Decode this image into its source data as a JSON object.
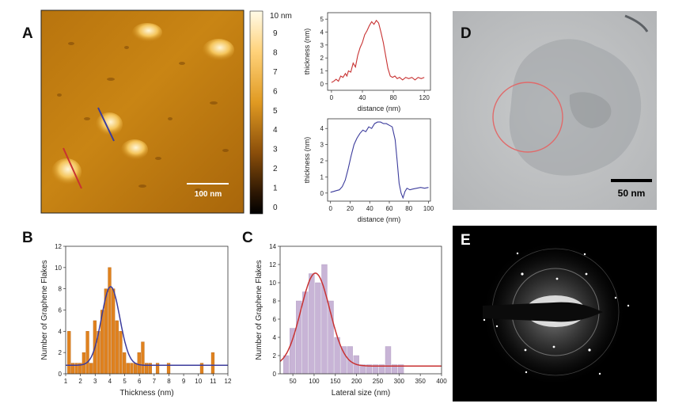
{
  "panels": {
    "A": {
      "letter": "A",
      "scalebar_label": "100 nm",
      "colorbar": {
        "unit_label": "10 nm",
        "ticks": [
          "9",
          "8",
          "7",
          "6",
          "5",
          "4",
          "3",
          "2",
          "1",
          "0"
        ]
      }
    },
    "B": {
      "letter": "B"
    },
    "C": {
      "letter": "C"
    },
    "D": {
      "letter": "D",
      "scalebar_label": "50 nm"
    },
    "E": {
      "letter": "E"
    }
  },
  "colors": {
    "red": "#c83232",
    "blue": "#3c3c9c",
    "orange_bar": "#e0821e",
    "lilac_bar": "#c8b4d6",
    "afm_mid": "#c78316"
  },
  "chart_data": [
    {
      "id": "profile-red",
      "type": "line",
      "xlabel": "distance (nm)",
      "ylabel": "thickness (nm)",
      "xlim": [
        -5,
        128
      ],
      "ylim": [
        -0.5,
        5.5
      ],
      "xticks": [
        "0",
        "40",
        "80",
        "120"
      ],
      "yticks": [
        "0",
        "1",
        "2",
        "3",
        "4",
        "5"
      ],
      "series": [
        {
          "color": "#c83232",
          "x": [
            0,
            3,
            6,
            9,
            12,
            15,
            18,
            20,
            22,
            25,
            28,
            31,
            34,
            37,
            40,
            43,
            46,
            49,
            52,
            55,
            58,
            61,
            64,
            67,
            70,
            73,
            76,
            79,
            82,
            85,
            88,
            92,
            96,
            100,
            104,
            108,
            112,
            116,
            120
          ],
          "y": [
            0.1,
            0.2,
            0.35,
            0.2,
            0.6,
            0.5,
            0.8,
            0.6,
            1.0,
            0.9,
            1.6,
            1.3,
            2.2,
            2.8,
            3.2,
            3.8,
            4.1,
            4.5,
            4.8,
            4.6,
            4.9,
            4.7,
            4.0,
            3.2,
            2.2,
            1.2,
            0.6,
            0.5,
            0.6,
            0.4,
            0.5,
            0.3,
            0.5,
            0.4,
            0.5,
            0.3,
            0.5,
            0.4,
            0.5
          ]
        }
      ]
    },
    {
      "id": "profile-blue",
      "type": "line",
      "xlabel": "distance (nm)",
      "ylabel": "thickness (nm)",
      "xlim": [
        -3,
        102
      ],
      "ylim": [
        -0.5,
        4.6
      ],
      "xticks": [
        "0",
        "20",
        "40",
        "60",
        "80",
        "100"
      ],
      "yticks": [
        "0",
        "1",
        "2",
        "3",
        "4"
      ],
      "series": [
        {
          "color": "#3c3c9c",
          "x": [
            0,
            3,
            6,
            9,
            12,
            15,
            18,
            21,
            24,
            27,
            30,
            33,
            36,
            39,
            42,
            45,
            48,
            51,
            54,
            57,
            60,
            63,
            66,
            68,
            70,
            72,
            74,
            76,
            78,
            81,
            84,
            88,
            92,
            96,
            100
          ],
          "y": [
            0.05,
            0.1,
            0.15,
            0.2,
            0.4,
            0.8,
            1.5,
            2.3,
            3.0,
            3.4,
            3.7,
            3.9,
            3.8,
            4.1,
            4.0,
            4.3,
            4.4,
            4.4,
            4.3,
            4.3,
            4.2,
            4.1,
            3.3,
            2.0,
            0.6,
            0.0,
            -0.3,
            0.1,
            0.3,
            0.2,
            0.25,
            0.3,
            0.35,
            0.3,
            0.35
          ]
        }
      ]
    },
    {
      "id": "hist-thickness",
      "type": "bar",
      "xlabel": "Thickness (nm)",
      "ylabel": "Number of Graphene Flakes",
      "xlim": [
        1,
        12
      ],
      "ylim": [
        0,
        12
      ],
      "xticks": [
        "1",
        "2",
        "3",
        "4",
        "5",
        "6",
        "7",
        "8",
        "9",
        "10",
        "11",
        "12"
      ],
      "yticks": [
        "0",
        "2",
        "4",
        "6",
        "8",
        "10",
        "12"
      ],
      "bar_width": 0.25,
      "x": [
        1.25,
        1.5,
        1.75,
        2.0,
        2.25,
        2.5,
        2.75,
        3.0,
        3.25,
        3.5,
        3.75,
        4.0,
        4.25,
        4.5,
        4.75,
        5.0,
        5.25,
        5.5,
        5.75,
        6.0,
        6.25,
        6.5,
        6.75,
        7.0,
        7.25,
        7.5,
        7.75,
        8.0,
        8.25,
        8.5,
        8.75,
        9.0,
        9.25,
        9.5,
        9.75,
        10.0,
        10.25,
        10.5,
        10.75,
        11.0,
        11.25
      ],
      "values": [
        4,
        1,
        1,
        1,
        2,
        4,
        1,
        5,
        4,
        6,
        8,
        10,
        8,
        5,
        4,
        2,
        1,
        1,
        1,
        2,
        3,
        1,
        1,
        0,
        1,
        0,
        0,
        1,
        0,
        0,
        0,
        0,
        0,
        0,
        0,
        0,
        1,
        0,
        0,
        2,
        0
      ],
      "fit": {
        "color": "#3c3c9c",
        "amplitude": 7.4,
        "center": 4.05,
        "sigma": 0.62,
        "offset": 0.8
      }
    },
    {
      "id": "hist-lateral",
      "type": "bar",
      "xlabel": "Lateral size (nm)",
      "ylabel": "Number of Graphene Flakes",
      "xlim": [
        20,
        400
      ],
      "ylim": [
        0,
        14
      ],
      "xticks": [
        "50",
        "100",
        "150",
        "200",
        "250",
        "300",
        "350",
        "400"
      ],
      "yticks": [
        "0",
        "2",
        "4",
        "6",
        "8",
        "10",
        "12",
        "14"
      ],
      "bar_width": 14.5,
      "x": [
        35,
        50,
        65,
        80,
        95,
        110,
        125,
        140,
        155,
        170,
        185,
        200,
        215,
        230,
        245,
        260,
        275,
        290,
        305,
        320,
        335,
        350
      ],
      "values": [
        2,
        5,
        8,
        9,
        11,
        10,
        12,
        8,
        4,
        3,
        3,
        2,
        1,
        1,
        1,
        1,
        3,
        1,
        1,
        0,
        0,
        0
      ],
      "fit": {
        "color": "#c83232",
        "amplitude": 10.2,
        "center": 103,
        "sigma": 34,
        "offset": 0.85
      }
    }
  ]
}
